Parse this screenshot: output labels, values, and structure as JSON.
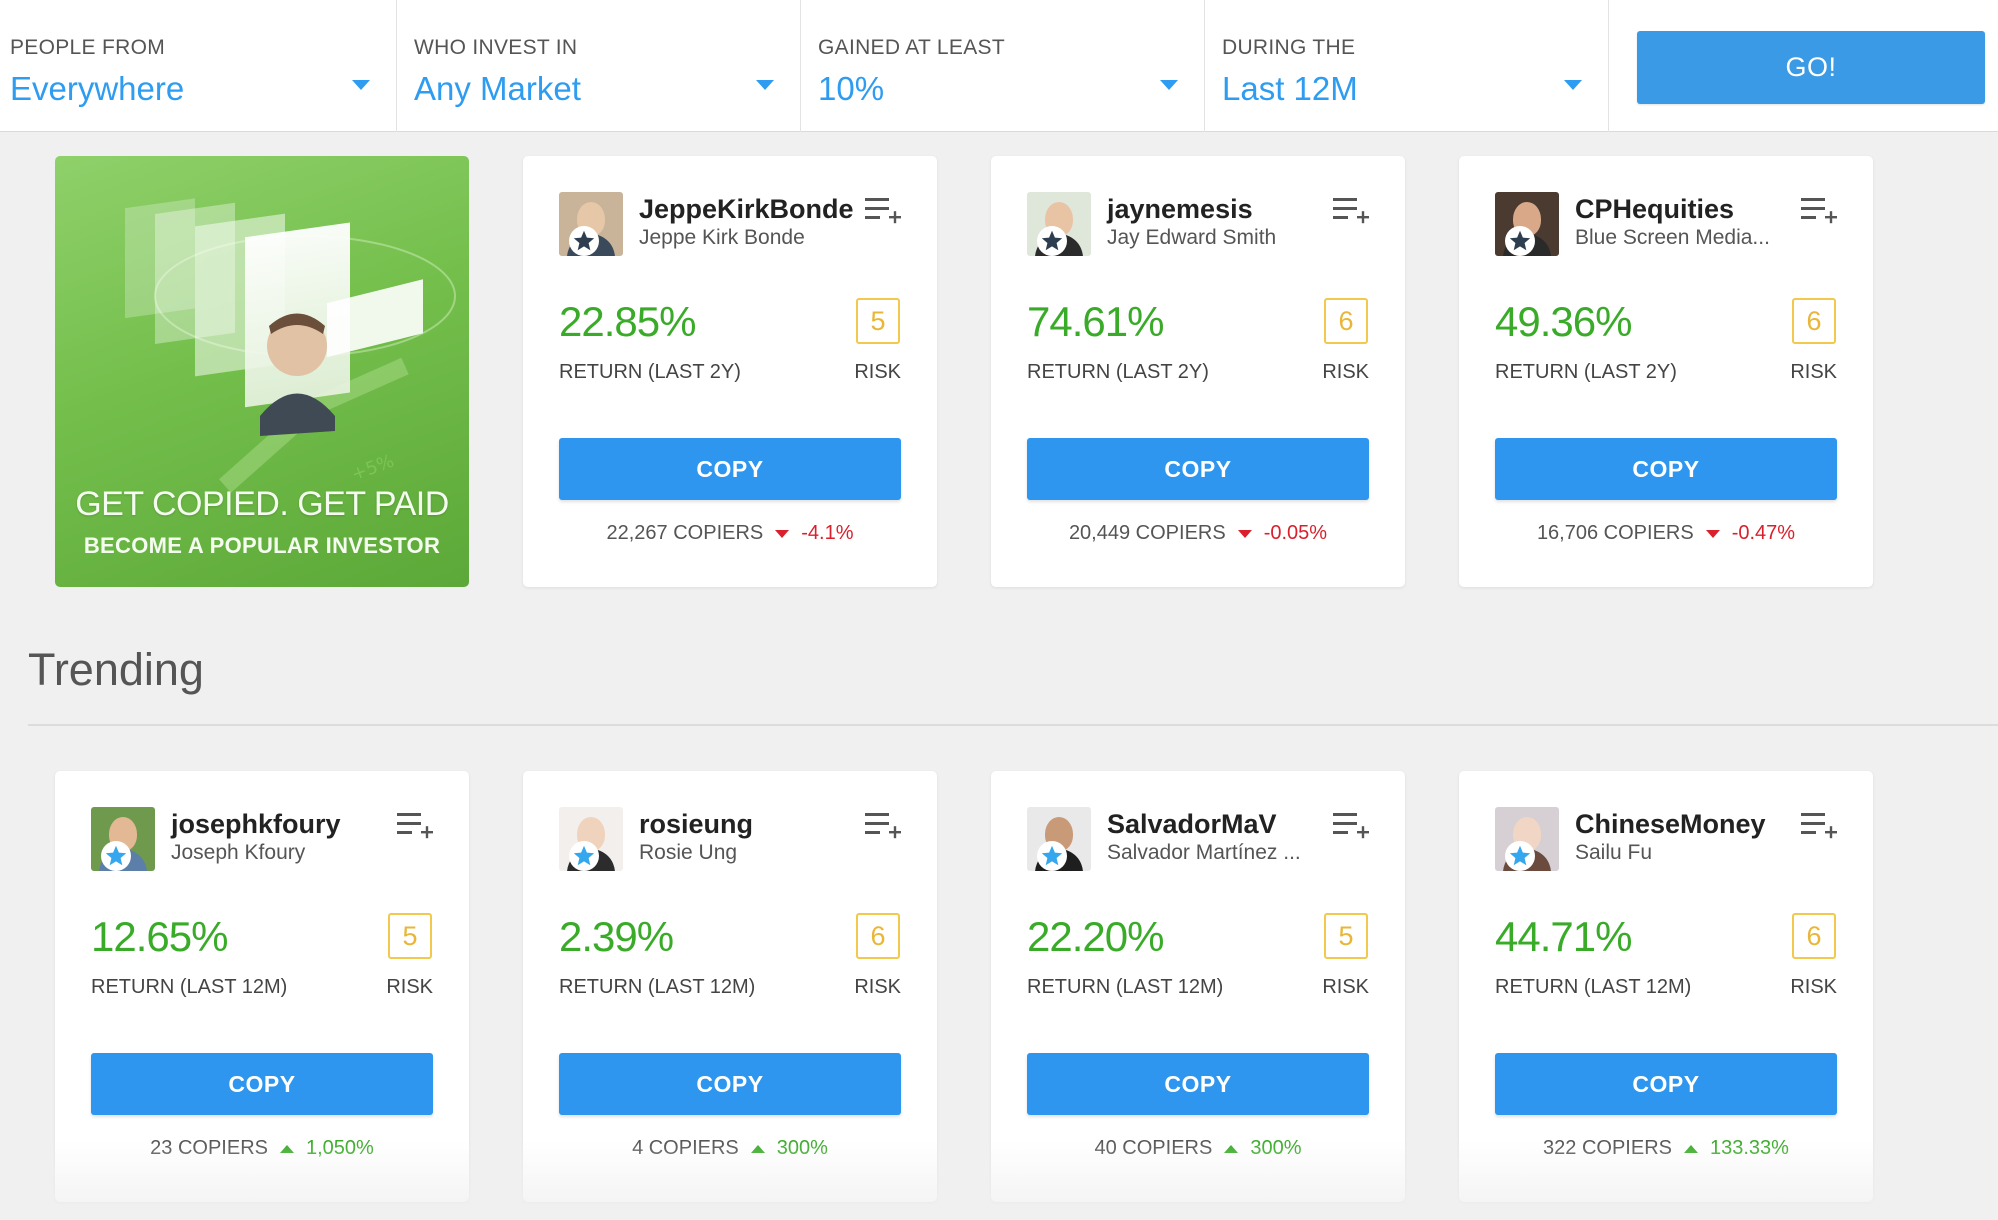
{
  "filters": [
    {
      "label": "PEOPLE FROM",
      "value": "Everywhere"
    },
    {
      "label": "WHO INVEST IN",
      "value": "Any Market"
    },
    {
      "label": "GAINED AT LEAST",
      "value": "10%"
    },
    {
      "label": "DURING THE",
      "value": "Last 12M"
    }
  ],
  "go_label": "GO!",
  "promo": {
    "title": "GET COPIED. GET PAID",
    "subtitle": "BECOME A POPULAR INVESTOR",
    "tag": "+5%"
  },
  "labels": {
    "risk": "RISK",
    "copy": "COPY"
  },
  "popular": [
    {
      "username": "JeppeKirkBonde",
      "fullname": "Jeppe Kirk Bonde",
      "gain": "22.85%",
      "return_label": "RETURN (LAST 2Y)",
      "risk": "5",
      "copiers": "22,267 COPIERS",
      "change": "-4.1%",
      "trend": "down",
      "avatar_bg": "#c9b49a",
      "face": "#e6c7a8",
      "shirt": "#3a4a5a",
      "badge": "dark"
    },
    {
      "username": "jaynemesis",
      "fullname": "Jay Edward Smith",
      "gain": "74.61%",
      "return_label": "RETURN (LAST 2Y)",
      "risk": "6",
      "copiers": "20,449 COPIERS",
      "change": "-0.05%",
      "trend": "down",
      "avatar_bg": "#dfe6da",
      "face": "#e8c4a4",
      "shirt": "#2b2b2b",
      "badge": "dark"
    },
    {
      "username": "CPHequities",
      "fullname": "Blue Screen Media...",
      "gain": "49.36%",
      "return_label": "RETURN (LAST 2Y)",
      "risk": "6",
      "copiers": "16,706 COPIERS",
      "change": "-0.47%",
      "trend": "down",
      "avatar_bg": "#4a3a30",
      "face": "#d8a888",
      "shirt": "#2a2a2a",
      "badge": "dark"
    }
  ],
  "trending_title": "Trending",
  "trending": [
    {
      "username": "josephkfoury",
      "fullname": "Joseph Kfoury",
      "gain": "12.65%",
      "return_label": "RETURN (LAST 12M)",
      "risk": "5",
      "copiers": "23 COPIERS",
      "change": "1,050%",
      "trend": "up",
      "avatar_bg": "#6f9a4e",
      "face": "#e3b894",
      "shirt": "#5b7fa8",
      "badge": "blue"
    },
    {
      "username": "rosieung",
      "fullname": "Rosie Ung",
      "gain": "2.39%",
      "return_label": "RETURN (LAST 12M)",
      "risk": "6",
      "copiers": "4 COPIERS",
      "change": "300%",
      "trend": "up",
      "avatar_bg": "#f2efed",
      "face": "#f0d3bd",
      "shirt": "#2c2c2c",
      "badge": "blue"
    },
    {
      "username": "SalvadorMaV",
      "fullname": "Salvador Martínez ...",
      "gain": "22.20%",
      "return_label": "RETURN (LAST 12M)",
      "risk": "5",
      "copiers": "40 COPIERS",
      "change": "300%",
      "trend": "up",
      "avatar_bg": "#e9e9e9",
      "face": "#c99a78",
      "shirt": "#1e1e1e",
      "badge": "blue"
    },
    {
      "username": "ChineseMoney",
      "fullname": "Sailu Fu",
      "gain": "44.71%",
      "return_label": "RETURN (LAST 12M)",
      "risk": "6",
      "copiers": "322 COPIERS",
      "change": "133.33%",
      "trend": "up",
      "avatar_bg": "#d6cfd3",
      "face": "#f1d6c6",
      "shirt": "#6a4b3e",
      "badge": "blue"
    }
  ]
}
